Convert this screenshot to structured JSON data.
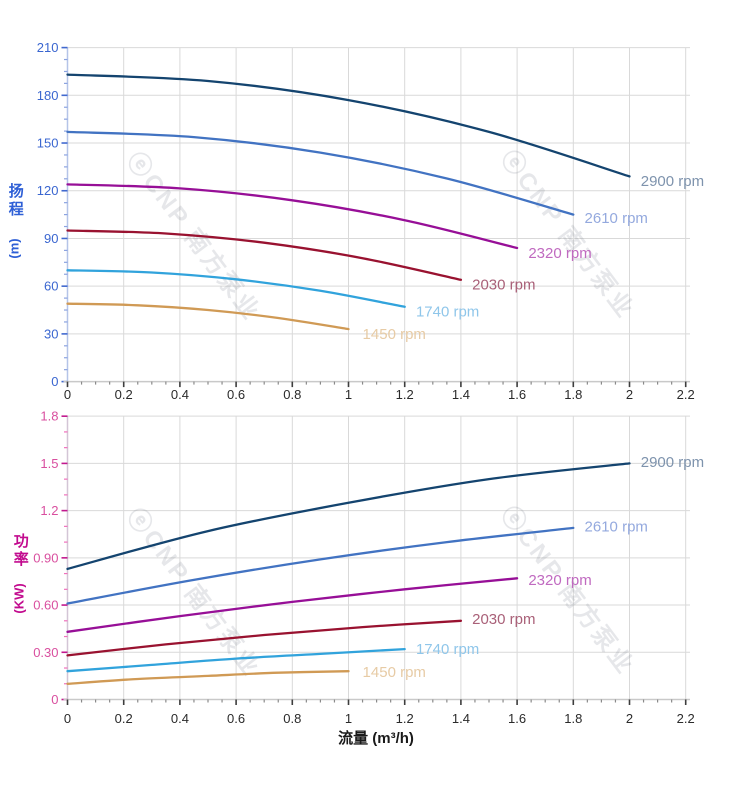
{
  "watermark": {
    "text": "ⓔCNP 南方泵业",
    "color": "#6b7280"
  },
  "colors": {
    "grid": "#d9d9d9",
    "x_axis_line": "#c9c9c9",
    "x_tick_major": "#3d3d3d",
    "x_tick_minor": "#8a8a8a",
    "x_tick_label": "#2a2a2a",
    "head_axis_line": "#b5c4e8",
    "head_tick_major": "#4169cf",
    "head_tick_minor": "#8ba3e0",
    "head_tick_label": "#3a66d0",
    "power_axis_line": "#d3c5d6",
    "power_tick_major": "#c2188e",
    "power_tick_minor": "#f070bc",
    "power_tick_label": "#d94f9f"
  },
  "chart_data": [
    {
      "id": "head",
      "type": "line",
      "title": "",
      "xlabel": "",
      "ylabel": "扬程 (m)",
      "ylabel_cn": "扬程",
      "ylabel_unit": "(m)",
      "xlim": [
        0,
        2.2
      ],
      "ylim": [
        0,
        210
      ],
      "grid": true,
      "legend_position": "right-of-curve-end",
      "x_axis": {
        "values": [
          0,
          0.2,
          0.4,
          0.6,
          0.8,
          1,
          1.2,
          1.4,
          1.6,
          1.8,
          2,
          2.2
        ],
        "labels": [
          "0",
          "0.2",
          "0.4",
          "0.6",
          "0.8",
          "1",
          "1.2",
          "1.4",
          "1.6",
          "1.8",
          "2",
          "2.2"
        ]
      },
      "y_axis": {
        "values": [
          0,
          30,
          60,
          90,
          120,
          150,
          180,
          210
        ],
        "labels": [
          "0",
          "30",
          "60",
          "90",
          "120",
          "150",
          "180",
          "210"
        ]
      },
      "series": [
        {
          "name": "2900 rpm",
          "color": "#14446f",
          "label_color": "#7e93ad",
          "points": [
            [
              0,
              193
            ],
            [
              0.5,
              189
            ],
            [
              1.0,
              177
            ],
            [
              1.5,
              157
            ],
            [
              2.0,
              129
            ]
          ],
          "label_at": [
            2.04,
            126
          ]
        },
        {
          "name": "2610 rpm",
          "color": "#4273c2",
          "label_color": "#94a9de",
          "points": [
            [
              0,
              157
            ],
            [
              0.45,
              153.7
            ],
            [
              0.9,
              144
            ],
            [
              1.35,
              127.7
            ],
            [
              1.8,
              105
            ]
          ],
          "label_at": [
            1.84,
            103
          ]
        },
        {
          "name": "2320 rpm",
          "color": "#970f97",
          "label_color": "#c06ac0",
          "points": [
            [
              0,
              124
            ],
            [
              0.4,
              121.5
            ],
            [
              0.8,
              114
            ],
            [
              1.2,
              101.5
            ],
            [
              1.6,
              84
            ]
          ],
          "label_at": [
            1.64,
            81
          ]
        },
        {
          "name": "2030 rpm",
          "color": "#991230",
          "label_color": "#a96078",
          "points": [
            [
              0,
              95
            ],
            [
              0.35,
              93.1
            ],
            [
              0.7,
              87.3
            ],
            [
              1.05,
              77.6
            ],
            [
              1.4,
              64
            ]
          ],
          "label_at": [
            1.44,
            61
          ]
        },
        {
          "name": "1740 rpm",
          "color": "#31a3dc",
          "label_color": "#8fc6ea",
          "points": [
            [
              0,
              70
            ],
            [
              0.3,
              68.6
            ],
            [
              0.6,
              64.3
            ],
            [
              0.9,
              57.1
            ],
            [
              1.2,
              47
            ]
          ],
          "label_at": [
            1.24,
            44
          ]
        },
        {
          "name": "1450 rpm",
          "color": "#d09a55",
          "label_color": "#e7cba5",
          "points": [
            [
              0,
              49
            ],
            [
              0.25,
              48
            ],
            [
              0.5,
              45
            ],
            [
              0.75,
              40
            ],
            [
              1.0,
              33
            ]
          ],
          "label_at": [
            1.05,
            30
          ]
        }
      ]
    },
    {
      "id": "power",
      "type": "line",
      "title": "",
      "xlabel": "流量 (m³/h)",
      "ylabel": "功率 (KW)",
      "ylabel_cn": "功率",
      "ylabel_unit": "(KW)",
      "xlim": [
        0,
        2.2
      ],
      "ylim": [
        0,
        1.8
      ],
      "grid": true,
      "legend_position": "right-of-curve-end",
      "x_axis": {
        "values": [
          0,
          0.2,
          0.4,
          0.6,
          0.8,
          1,
          1.2,
          1.4,
          1.6,
          1.8,
          2,
          2.2
        ],
        "labels": [
          "0",
          "0.2",
          "0.4",
          "0.6",
          "0.8",
          "1",
          "1.2",
          "1.4",
          "1.6",
          "1.8",
          "2",
          "2.2"
        ]
      },
      "y_axis": {
        "values": [
          0,
          0.3,
          0.6,
          0.9,
          1.2,
          1.5,
          1.8
        ],
        "labels": [
          "0",
          "0.30",
          "0.60",
          "0.90",
          "1.2",
          "1.5",
          "1.8"
        ]
      },
      "series": [
        {
          "name": "2900 rpm",
          "color": "#14446f",
          "label_color": "#7e93ad",
          "points": [
            [
              0,
              0.83
            ],
            [
              0.5,
              1.07
            ],
            [
              1.0,
              1.25
            ],
            [
              1.5,
              1.4
            ],
            [
              2.0,
              1.5
            ]
          ],
          "label_at": [
            2.04,
            1.51
          ]
        },
        {
          "name": "2610 rpm",
          "color": "#4273c2",
          "label_color": "#94a9de",
          "points": [
            [
              0,
              0.61
            ],
            [
              0.45,
              0.76
            ],
            [
              0.9,
              0.89
            ],
            [
              1.35,
              1.0
            ],
            [
              1.8,
              1.09
            ]
          ],
          "label_at": [
            1.84,
            1.1
          ]
        },
        {
          "name": "2320 rpm",
          "color": "#970f97",
          "label_color": "#c06ac0",
          "points": [
            [
              0,
              0.43
            ],
            [
              0.4,
              0.53
            ],
            [
              0.8,
              0.62
            ],
            [
              1.2,
              0.7
            ],
            [
              1.6,
              0.77
            ]
          ],
          "label_at": [
            1.64,
            0.76
          ]
        },
        {
          "name": "2030 rpm",
          "color": "#991230",
          "label_color": "#a96078",
          "points": [
            [
              0,
              0.28
            ],
            [
              0.35,
              0.35
            ],
            [
              0.7,
              0.41
            ],
            [
              1.05,
              0.46
            ],
            [
              1.4,
              0.5
            ]
          ],
          "label_at": [
            1.44,
            0.51
          ]
        },
        {
          "name": "1740 rpm",
          "color": "#31a3dc",
          "label_color": "#8fc6ea",
          "points": [
            [
              0,
              0.18
            ],
            [
              0.3,
              0.22
            ],
            [
              0.6,
              0.26
            ],
            [
              0.9,
              0.29
            ],
            [
              1.2,
              0.32
            ]
          ],
          "label_at": [
            1.24,
            0.32
          ]
        },
        {
          "name": "1450 rpm",
          "color": "#d09a55",
          "label_color": "#e7cba5",
          "points": [
            [
              0,
              0.1
            ],
            [
              0.25,
              0.13
            ],
            [
              0.5,
              0.15
            ],
            [
              0.75,
              0.17
            ],
            [
              1.0,
              0.18
            ]
          ],
          "label_at": [
            1.05,
            0.175
          ]
        }
      ]
    }
  ]
}
